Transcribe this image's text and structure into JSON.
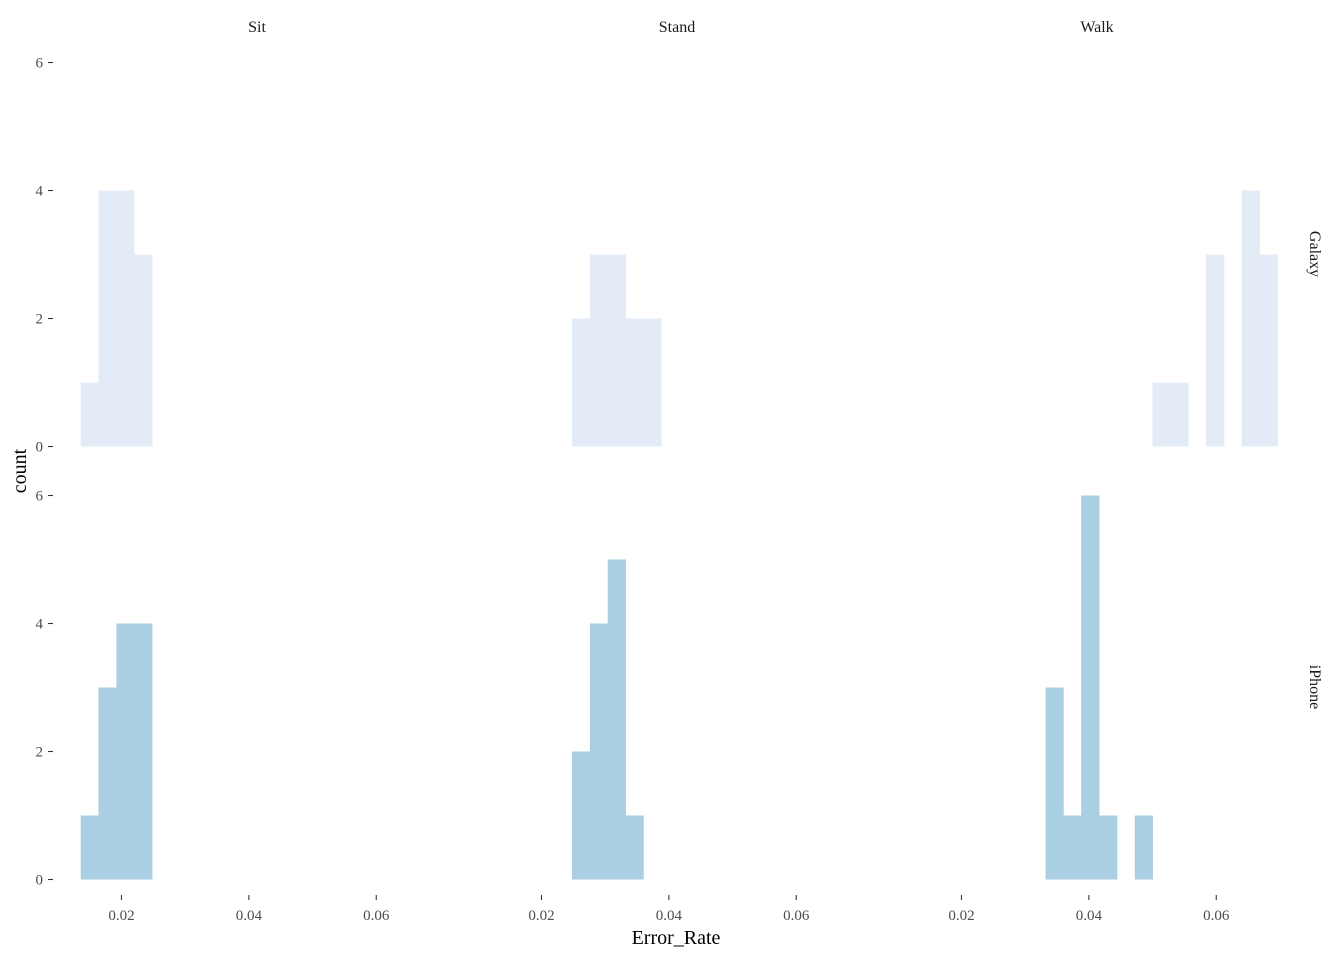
{
  "chart_data": {
    "type": "histogram",
    "xlabel": "Error_Rate",
    "ylabel": "count",
    "bin_width": 0.0028,
    "x_ticks": [
      0.02,
      0.04,
      0.06
    ],
    "x_tick_labels": [
      "0.02",
      "0.04",
      "0.06"
    ],
    "y_ticks": [
      0,
      2,
      4,
      6
    ],
    "y_tick_labels": [
      "0",
      "2",
      "4",
      "6"
    ],
    "ylim": [
      0,
      6
    ],
    "xlim": [
      0.0125,
      0.0699
    ],
    "grid": false,
    "legend": "none",
    "columns": [
      "Sit",
      "Stand",
      "Walk"
    ],
    "rows": [
      "Galaxy",
      "iPhone"
    ],
    "row_colors": {
      "Galaxy": "#e3ecf6",
      "iPhone": "#aacfe3"
    },
    "panels": [
      {
        "row": "Galaxy",
        "col": "Sit",
        "bins": [
          {
            "x": [
              0.0136,
              0.0164
            ],
            "count": 1
          },
          {
            "x": [
              0.0164,
              0.0192
            ],
            "count": 4
          },
          {
            "x": [
              0.0192,
              0.022
            ],
            "count": 4
          },
          {
            "x": [
              0.022,
              0.0248
            ],
            "count": 3
          }
        ]
      },
      {
        "row": "Galaxy",
        "col": "Stand",
        "bins": [
          {
            "x": [
              0.0248,
              0.0276
            ],
            "count": 2
          },
          {
            "x": [
              0.0276,
              0.0304
            ],
            "count": 3
          },
          {
            "x": [
              0.0304,
              0.0332
            ],
            "count": 3
          },
          {
            "x": [
              0.0332,
              0.036
            ],
            "count": 2
          },
          {
            "x": [
              0.036,
              0.0388
            ],
            "count": 2
          }
        ]
      },
      {
        "row": "Galaxy",
        "col": "Walk",
        "bins": [
          {
            "x": [
              0.05,
              0.0528
            ],
            "count": 1
          },
          {
            "x": [
              0.0528,
              0.0556
            ],
            "count": 1
          },
          {
            "x": [
              0.0584,
              0.0612
            ],
            "count": 3
          },
          {
            "x": [
              0.064,
              0.0668
            ],
            "count": 4
          },
          {
            "x": [
              0.0668,
              0.0696
            ],
            "count": 3
          }
        ]
      },
      {
        "row": "iPhone",
        "col": "Sit",
        "bins": [
          {
            "x": [
              0.0136,
              0.0164
            ],
            "count": 1
          },
          {
            "x": [
              0.0164,
              0.0192
            ],
            "count": 3
          },
          {
            "x": [
              0.0192,
              0.022
            ],
            "count": 4
          },
          {
            "x": [
              0.022,
              0.0248
            ],
            "count": 4
          }
        ]
      },
      {
        "row": "iPhone",
        "col": "Stand",
        "bins": [
          {
            "x": [
              0.0248,
              0.0276
            ],
            "count": 2
          },
          {
            "x": [
              0.0276,
              0.0304
            ],
            "count": 4
          },
          {
            "x": [
              0.0304,
              0.0332
            ],
            "count": 5
          },
          {
            "x": [
              0.0332,
              0.036
            ],
            "count": 1
          }
        ]
      },
      {
        "row": "iPhone",
        "col": "Walk",
        "bins": [
          {
            "x": [
              0.0332,
              0.036
            ],
            "count": 3
          },
          {
            "x": [
              0.036,
              0.0388
            ],
            "count": 1
          },
          {
            "x": [
              0.0388,
              0.0416
            ],
            "count": 6
          },
          {
            "x": [
              0.0416,
              0.0444
            ],
            "count": 1
          },
          {
            "x": [
              0.0472,
              0.05
            ],
            "count": 1
          }
        ]
      }
    ]
  }
}
